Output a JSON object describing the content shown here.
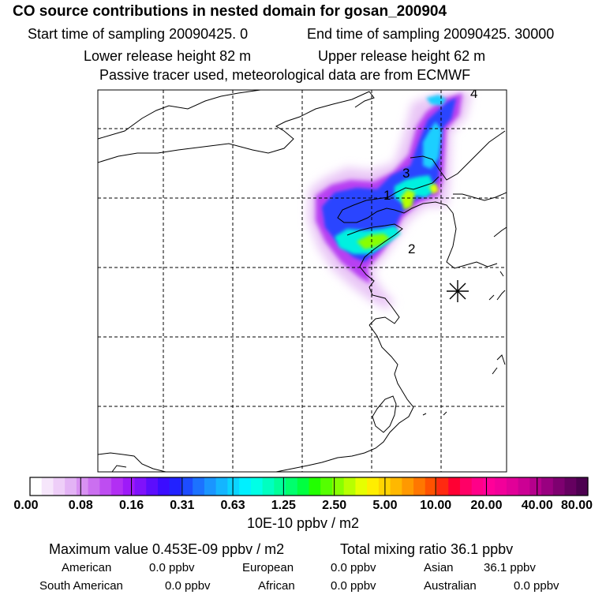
{
  "header": {
    "title": "CO  source contributions in nested domain for gosan_200904",
    "start_time": "Start time of sampling 20090425.     0",
    "end_time": "End time of sampling 20090425. 30000",
    "lower_release": "Lower release height   82 m",
    "upper_release": "Upper release height   62 m",
    "note": "Passive tracer used, meteorological data are from ECMWF"
  },
  "colors": {
    "frame": "#000000",
    "land": "#ffffff"
  },
  "chart_data": {
    "type": "heatmap",
    "map": {
      "region": "East Asia nested domain (China, Korea, Japan)",
      "grid_lines": "dashed",
      "receptor_marker": "gosan",
      "source_labels": [
        "1",
        "2",
        "3",
        "4"
      ]
    },
    "colorbar": {
      "tick_labels": [
        "0.00",
        "0.08",
        "0.16",
        "0.31",
        "0.63",
        "1.25",
        "2.50",
        "5.00",
        "10.00",
        "20.00",
        "40.00",
        "80.00"
      ],
      "units": "10E-10 ppbv / m2",
      "colors": [
        "#ffffff",
        "#f6e6fb",
        "#eecef8",
        "#e3b3f5",
        "#d891f2",
        "#cb6ff0",
        "#be4df1",
        "#b22ff3",
        "#9e1af8",
        "#7f12fb",
        "#5c0dfd",
        "#3b0cff",
        "#2222ff",
        "#1d4cff",
        "#1c72ff",
        "#1a95ff",
        "#14b5ff",
        "#0bd4ff",
        "#00f0ff",
        "#00ffe6",
        "#00ffc0",
        "#00ff99",
        "#00ff6d",
        "#00ff40",
        "#22ff00",
        "#55ff00",
        "#88ff00",
        "#b8ff00",
        "#e6ff00",
        "#ffee00",
        "#ffd400",
        "#ffb800",
        "#ff9900",
        "#ff7700",
        "#ff5200",
        "#ff2a10",
        "#ff0033",
        "#ff0066",
        "#ff0088",
        "#ff0099",
        "#f2009a",
        "#e10098",
        "#cc0094",
        "#b5008c",
        "#990080",
        "#7e0070",
        "#650060",
        "#4d0050"
      ]
    },
    "max_value": "Maximum value  0.453E-09 ppbv / m2",
    "total_mixing_ratio": "Total mixing ratio       36.1 ppbv",
    "regional": [
      {
        "name": "American",
        "value": "0.0 ppbv"
      },
      {
        "name": "European",
        "value": "0.0 ppbv"
      },
      {
        "name": "Asian",
        "value": "36.1 ppbv"
      },
      {
        "name": "South American",
        "value": "0.0 ppbv"
      },
      {
        "name": "African",
        "value": "0.0 ppbv"
      },
      {
        "name": "Australian",
        "value": "0.0 ppbv"
      }
    ]
  }
}
